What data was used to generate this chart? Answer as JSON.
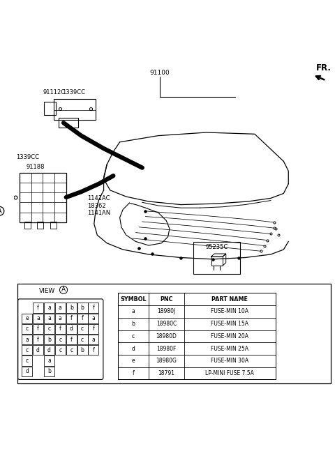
{
  "bg_color": "#ffffff",
  "line_color": "#000000",
  "table_data": {
    "headers": [
      "SYMBOL",
      "PNC",
      "PART NAME"
    ],
    "rows": [
      [
        "a",
        "18980J",
        "FUSE-MIN 10A"
      ],
      [
        "b",
        "18980C",
        "FUSE-MIN 15A"
      ],
      [
        "c",
        "18980D",
        "FUSE-MIN 20A"
      ],
      [
        "d",
        "18980F",
        "FUSE-MIN 25A"
      ],
      [
        "e",
        "18980G",
        "FUSE-MIN 30A"
      ],
      [
        "f",
        "18791",
        "LP-MINI FUSE 7.5A"
      ]
    ]
  },
  "fuse_grid": [
    [
      "",
      "f",
      "a",
      "a",
      "b",
      "b",
      "f"
    ],
    [
      "e",
      "a",
      "a",
      "a",
      "f",
      "f",
      "a"
    ],
    [
      "c",
      "f",
      "c",
      "f",
      "d",
      "c",
      "f"
    ],
    [
      "a",
      "f",
      "b",
      "c",
      "f",
      "c",
      "a"
    ],
    [
      "c",
      "d",
      "d",
      "c",
      "c",
      "b",
      "f"
    ],
    [
      "c",
      "",
      "a",
      "",
      "",
      "",
      ""
    ],
    [
      "d",
      "",
      "b",
      "",
      "",
      "",
      ""
    ]
  ],
  "label_fontsize": 6.5,
  "small_fontsize": 6.0
}
